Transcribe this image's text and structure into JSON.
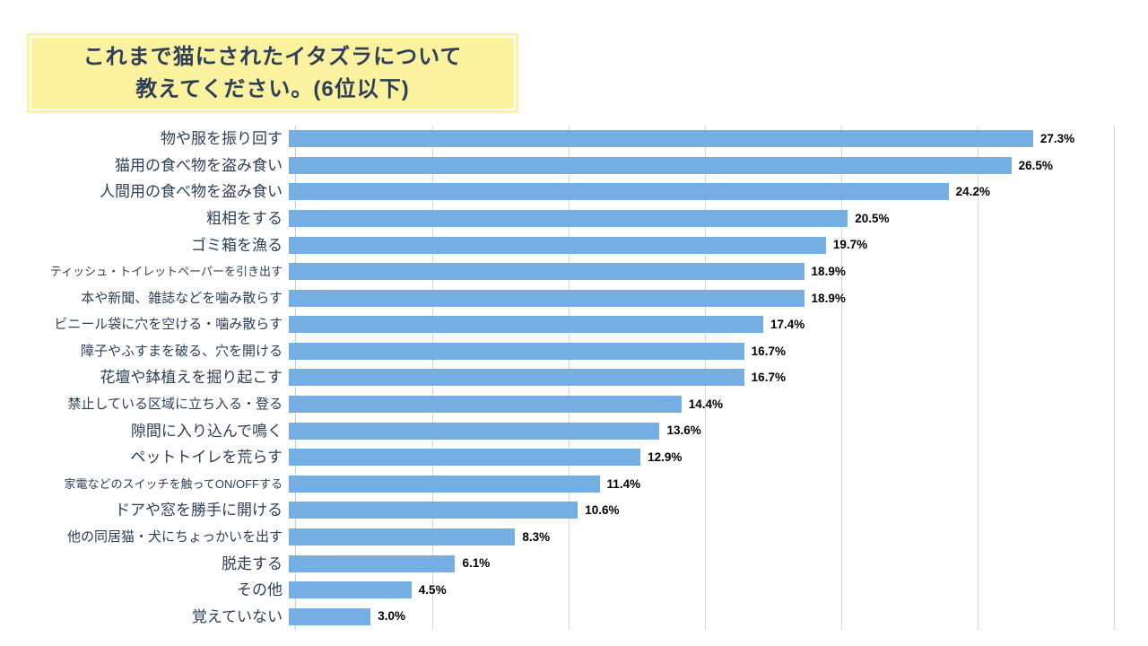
{
  "title": {
    "line1": "これまで猫にされたイタズラについて",
    "line2": "教えてください。(6位以下)"
  },
  "chart_data": {
    "type": "bar",
    "orientation": "horizontal",
    "title": "これまで猫にされたイタズラについて教えてください。(6位以下)",
    "categories": [
      "物や服を振り回す",
      "猫用の食べ物を盗み食い",
      "人間用の食べ物を盗み食い",
      "粗相をする",
      "ゴミ箱を漁る",
      "ティッシュ・トイレットペーパーを引き出す",
      "本や新聞、雑誌などを噛み散らす",
      "ビニール袋に穴を空ける・噛み散らす",
      "障子やふすまを破る、穴を開ける",
      "花壇や鉢植えを掘り起こす",
      "禁止している区域に立ち入る・登る",
      "隙間に入り込んで鳴く",
      "ペットトイレを荒らす",
      "家電などのスイッチを触ってON/OFFする",
      "ドアや窓を勝手に開ける",
      "他の同居猫・犬にちょっかいを出す",
      "脱走する",
      "その他",
      "覚えていない"
    ],
    "values": [
      27.3,
      26.5,
      24.2,
      20.5,
      19.7,
      18.9,
      18.9,
      17.4,
      16.7,
      16.7,
      14.4,
      13.6,
      12.9,
      11.4,
      10.6,
      8.3,
      6.1,
      4.5,
      3.0
    ],
    "value_labels": [
      "27.3%",
      "26.5%",
      "24.2%",
      "20.5%",
      "19.7%",
      "18.9%",
      "18.9%",
      "17.4%",
      "16.7%",
      "16.7%",
      "14.4%",
      "13.6%",
      "12.9%",
      "11.4%",
      "10.6%",
      "8.3%",
      "6.1%",
      "4.5%",
      "3.0%"
    ],
    "xlim": [
      0,
      30
    ],
    "gridline_step": 5,
    "x_tick_labels_visible": false,
    "legend": "none",
    "grid": true
  },
  "colors": {
    "bar": "#74AEE2",
    "grid": "#d6d6d6",
    "axis": "#c9c9c9",
    "category_label": "#2E4057",
    "value_label": "#000000",
    "title_bg": "#FBF2A0",
    "title_border": "#FFFFFF",
    "title_text": "#2E4057"
  }
}
